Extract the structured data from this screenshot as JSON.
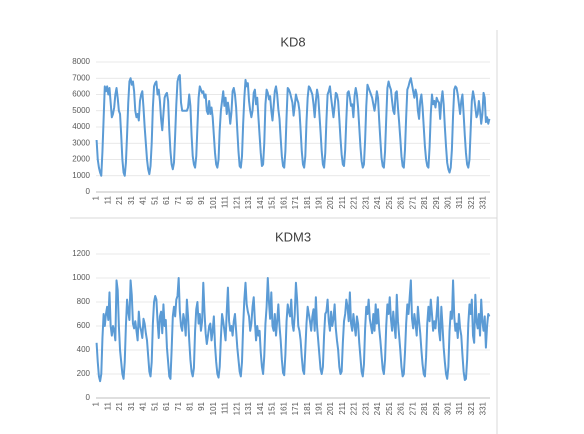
{
  "chart_data": [
    {
      "type": "line",
      "title": "KD8",
      "color": "#5b9bd5",
      "grid": true,
      "ylim": [
        0,
        8000
      ],
      "yticks": [
        0,
        1000,
        2000,
        3000,
        4000,
        5000,
        6000,
        7000,
        8000
      ],
      "categories": [
        "1",
        null,
        null,
        null,
        null,
        null,
        null,
        null,
        null,
        null,
        "11",
        null,
        null,
        null,
        null,
        null,
        null,
        null,
        null,
        null,
        "21",
        null,
        null,
        null,
        null,
        null,
        null,
        null,
        null,
        null,
        "31",
        null,
        null,
        null,
        null,
        null,
        null,
        null,
        null,
        null,
        "41",
        null,
        null,
        null,
        null,
        null,
        null,
        null,
        null,
        null,
        "51",
        null,
        null,
        null,
        null,
        null,
        null,
        null,
        null,
        null,
        "61",
        null,
        null,
        null,
        null,
        null,
        null,
        null,
        null,
        null,
        "71",
        null,
        null,
        null,
        null,
        null,
        null,
        null,
        null,
        null,
        "81",
        null,
        null,
        null,
        null,
        null,
        null,
        null,
        null,
        null,
        "91",
        null,
        null,
        null,
        null,
        null,
        null,
        null,
        null,
        null,
        "101",
        null,
        null,
        null,
        null,
        null,
        null,
        null,
        null,
        null,
        "111",
        null,
        null,
        null,
        null,
        null,
        null,
        null,
        null,
        null,
        "121",
        null,
        null,
        null,
        null,
        null,
        null,
        null,
        null,
        null,
        "131",
        null,
        null,
        null,
        null,
        null,
        null,
        null,
        null,
        null,
        "141",
        null,
        null,
        null,
        null,
        null,
        null,
        null,
        null,
        null,
        "151",
        null,
        null,
        null,
        null,
        null,
        null,
        null,
        null,
        null,
        "161",
        null,
        null,
        null,
        null,
        null,
        null,
        null,
        null,
        null,
        "171",
        null,
        null,
        null,
        null,
        null,
        null,
        null,
        null,
        null,
        "181",
        null,
        null,
        null,
        null,
        null,
        null,
        null,
        null,
        null,
        "191",
        null,
        null,
        null,
        null,
        null,
        null,
        null,
        null,
        null,
        "201",
        null,
        null,
        null,
        null,
        null,
        null,
        null,
        null,
        null,
        "211",
        null,
        null,
        null,
        null,
        null,
        null,
        null,
        null,
        null,
        "221",
        null,
        null,
        null,
        null,
        null,
        null,
        null,
        null,
        null,
        "231",
        null,
        null,
        null,
        null,
        null,
        null,
        null,
        null,
        null,
        "241",
        null,
        null,
        null,
        null,
        null,
        null,
        null,
        null,
        null,
        "251",
        null,
        null,
        null,
        null,
        null,
        null,
        null,
        null,
        null,
        "261",
        null,
        null,
        null,
        null,
        null,
        null,
        null,
        null,
        null,
        "271",
        null,
        null,
        null,
        null,
        null,
        null,
        null,
        null,
        null,
        "281",
        null,
        null,
        null,
        null,
        null,
        null,
        null,
        null,
        null,
        "291",
        null,
        null,
        null,
        null,
        null,
        null,
        null,
        null,
        null,
        "301",
        null,
        null,
        null,
        null,
        null,
        null,
        null,
        null,
        null,
        "311",
        null,
        null,
        null,
        null,
        null,
        null,
        null,
        null,
        null,
        "321",
        null,
        null,
        null,
        null,
        null,
        null,
        null,
        null,
        null,
        "331",
        null,
        null,
        null,
        null,
        null
      ],
      "values": [
        3200,
        2000,
        1500,
        1200,
        1000,
        2500,
        4500,
        6500,
        6200,
        6500,
        6000,
        6400,
        5500,
        4600,
        4800,
        5200,
        6000,
        6400,
        5800,
        5000,
        4800,
        3500,
        2000,
        1200,
        1000,
        1800,
        3500,
        5500,
        6800,
        7000,
        6600,
        6800,
        6200,
        5000,
        4600,
        4800,
        4400,
        5600,
        6000,
        6200,
        5200,
        4000,
        3000,
        2000,
        1400,
        1100,
        1600,
        3000,
        5200,
        6500,
        6700,
        6800,
        6000,
        6300,
        5600,
        4500,
        3800,
        4800,
        5800,
        6000,
        6100,
        5600,
        3800,
        2500,
        1700,
        1400,
        1800,
        3500,
        5400,
        6800,
        7100,
        7200,
        5500,
        5000,
        5000,
        5000,
        5000,
        5000,
        5200,
        6000,
        5300,
        3500,
        2200,
        1700,
        1500,
        2200,
        4000,
        5800,
        6500,
        6300,
        6100,
        6200,
        5800,
        6000,
        5000,
        4800,
        5600,
        4800,
        5200,
        4600,
        3500,
        2400,
        1700,
        1500,
        2000,
        3800,
        5000,
        5600,
        6200,
        5300,
        5800,
        4800,
        5500,
        5000,
        4200,
        4900,
        6200,
        6400,
        6000,
        5200,
        3800,
        2500,
        1600,
        1500,
        2200,
        4200,
        5800,
        6900,
        6500,
        6700,
        5600,
        5000,
        4600,
        5000,
        6100,
        6300,
        5400,
        5800,
        4600,
        3500,
        2400,
        1600,
        1700,
        3000,
        5400,
        6300,
        6100,
        5700,
        5900,
        5000,
        4400,
        5300,
        6200,
        6500,
        6000,
        5100,
        4500,
        3300,
        2200,
        1600,
        1500,
        2500,
        4600,
        6400,
        6300,
        6100,
        5800,
        5500,
        4700,
        5300,
        6000,
        5700,
        5500,
        5000,
        3800,
        2500,
        1700,
        1500,
        2200,
        4300,
        5800,
        6500,
        6400,
        6200,
        6000,
        5400,
        4600,
        5600,
        6300,
        5900,
        4800,
        3700,
        2500,
        1700,
        1500,
        2400,
        4400,
        6000,
        6200,
        6500,
        5800,
        5200,
        4600,
        5300,
        6100,
        6000,
        5600,
        4500,
        3300,
        2300,
        1700,
        1600,
        2600,
        4500,
        6100,
        6200,
        5800,
        5300,
        5400,
        4600,
        5900,
        6400,
        6000,
        5200,
        4000,
        2800,
        1900,
        1500,
        1700,
        3200,
        5300,
        6600,
        6400,
        6200,
        6000,
        5800,
        5400,
        5000,
        5500,
        6200,
        5800,
        4400,
        3200,
        2100,
        1600,
        1500,
        2500,
        4500,
        6400,
        6800,
        6500,
        6300,
        5600,
        5000,
        4800,
        6100,
        6200,
        5200,
        4300,
        3300,
        2200,
        1600,
        1500,
        2600,
        4600,
        6300,
        6500,
        6800,
        7000,
        6600,
        6200,
        5800,
        6300,
        6000,
        5000,
        4500,
        5600,
        6000,
        5200,
        4000,
        2800,
        2000,
        1600,
        1500,
        2800,
        4800,
        6000,
        5400,
        5600,
        5200,
        5800,
        5600,
        5500,
        4500,
        5600,
        6200,
        5400,
        4000,
        2800,
        1800,
        1400,
        1200,
        1500,
        2600,
        4700,
        6300,
        6500,
        6400,
        6000,
        5400,
        4800,
        5600,
        6000,
        4800,
        3500,
        2400,
        1700,
        1500,
        2000,
        3800,
        5600,
        6200,
        5800,
        5200,
        4600,
        4800,
        5600,
        5000,
        4200,
        4800,
        6100,
        5800,
        4300,
        4600,
        4200,
        4500
      ]
    },
    {
      "type": "line",
      "title": "KDM3",
      "color": "#5b9bd5",
      "grid": true,
      "ylim": [
        0,
        1200
      ],
      "yticks": [
        0,
        200,
        400,
        600,
        800,
        1000,
        1200
      ],
      "categories": [
        "1",
        null,
        null,
        null,
        null,
        null,
        null,
        null,
        null,
        null,
        "11",
        null,
        null,
        null,
        null,
        null,
        null,
        null,
        null,
        null,
        "21",
        null,
        null,
        null,
        null,
        null,
        null,
        null,
        null,
        null,
        "31",
        null,
        null,
        null,
        null,
        null,
        null,
        null,
        null,
        null,
        "41",
        null,
        null,
        null,
        null,
        null,
        null,
        null,
        null,
        null,
        "51",
        null,
        null,
        null,
        null,
        null,
        null,
        null,
        null,
        null,
        "61",
        null,
        null,
        null,
        null,
        null,
        null,
        null,
        null,
        null,
        "71",
        null,
        null,
        null,
        null,
        null,
        null,
        null,
        null,
        null,
        "81",
        null,
        null,
        null,
        null,
        null,
        null,
        null,
        null,
        null,
        "91",
        null,
        null,
        null,
        null,
        null,
        null,
        null,
        null,
        null,
        "101",
        null,
        null,
        null,
        null,
        null,
        null,
        null,
        null,
        null,
        "111",
        null,
        null,
        null,
        null,
        null,
        null,
        null,
        null,
        null,
        "121",
        null,
        null,
        null,
        null,
        null,
        null,
        null,
        null,
        null,
        "131",
        null,
        null,
        null,
        null,
        null,
        null,
        null,
        null,
        null,
        "141",
        null,
        null,
        null,
        null,
        null,
        null,
        null,
        null,
        null,
        "151",
        null,
        null,
        null,
        null,
        null,
        null,
        null,
        null,
        null,
        "161",
        null,
        null,
        null,
        null,
        null,
        null,
        null,
        null,
        null,
        "171",
        null,
        null,
        null,
        null,
        null,
        null,
        null,
        null,
        null,
        "181",
        null,
        null,
        null,
        null,
        null,
        null,
        null,
        null,
        null,
        "191",
        null,
        null,
        null,
        null,
        null,
        null,
        null,
        null,
        null,
        "201",
        null,
        null,
        null,
        null,
        null,
        null,
        null,
        null,
        null,
        "211",
        null,
        null,
        null,
        null,
        null,
        null,
        null,
        null,
        null,
        "221",
        null,
        null,
        null,
        null,
        null,
        null,
        null,
        null,
        null,
        "231",
        null,
        null,
        null,
        null,
        null,
        null,
        null,
        null,
        null,
        "241",
        null,
        null,
        null,
        null,
        null,
        null,
        null,
        null,
        null,
        "251",
        null,
        null,
        null,
        null,
        null,
        null,
        null,
        null,
        null,
        "261",
        null,
        null,
        null,
        null,
        null,
        null,
        null,
        null,
        null,
        "271",
        null,
        null,
        null,
        null,
        null,
        null,
        null,
        null,
        null,
        "281",
        null,
        null,
        null,
        null,
        null,
        null,
        null,
        null,
        null,
        "291",
        null,
        null,
        null,
        null,
        null,
        null,
        null,
        null,
        null,
        "301",
        null,
        null,
        null,
        null,
        null,
        null,
        null,
        null,
        null,
        "311",
        null,
        null,
        null,
        null,
        null,
        null,
        null,
        null,
        null,
        "321",
        null,
        null,
        null,
        null,
        null,
        null,
        null,
        null,
        null,
        "331",
        null,
        null,
        null,
        null,
        null
      ],
      "values": [
        460,
        300,
        180,
        140,
        200,
        500,
        700,
        600,
        700,
        760,
        650,
        880,
        600,
        520,
        600,
        560,
        480,
        980,
        900,
        600,
        400,
        300,
        200,
        160,
        300,
        600,
        820,
        720,
        650,
        980,
        860,
        620,
        580,
        640,
        560,
        480,
        720,
        600,
        560,
        500,
        660,
        620,
        540,
        480,
        350,
        220,
        180,
        300,
        620,
        800,
        850,
        820,
        640,
        500,
        680,
        720,
        540,
        780,
        600,
        650,
        420,
        300,
        180,
        160,
        400,
        680,
        760,
        680,
        820,
        850,
        1000,
        720,
        600,
        560,
        700,
        640,
        520,
        820,
        680,
        480,
        320,
        220,
        180,
        250,
        560,
        740,
        800,
        620,
        700,
        560,
        640,
        960,
        720,
        540,
        450,
        520,
        600,
        620,
        480,
        560,
        680,
        440,
        300,
        200,
        170,
        260,
        500,
        700,
        640,
        560,
        480,
        720,
        920,
        640,
        560,
        600,
        520,
        640,
        700,
        560,
        420,
        320,
        220,
        180,
        300,
        600,
        820,
        960,
        780,
        720,
        680,
        560,
        620,
        760,
        840,
        640,
        480,
        600,
        520,
        560,
        380,
        260,
        200,
        350,
        620,
        760,
        1000,
        800,
        660,
        880,
        600,
        560,
        700,
        520,
        640,
        780,
        600,
        480,
        320,
        210,
        190,
        360,
        640,
        780,
        720,
        680,
        820,
        620,
        560,
        700,
        960,
        820,
        600,
        560,
        480,
        340,
        230,
        200,
        400,
        620,
        760,
        700,
        640,
        560,
        680,
        740,
        560,
        840,
        600,
        480,
        360,
        240,
        200,
        260,
        520,
        700,
        720,
        820,
        640,
        560,
        720,
        600,
        660,
        780,
        580,
        480,
        400,
        260,
        200,
        220,
        460,
        640,
        700,
        820,
        760,
        640,
        880,
        620,
        560,
        700,
        600,
        520,
        680,
        620,
        460,
        340,
        220,
        180,
        280,
        580,
        760,
        700,
        820,
        660,
        600,
        540,
        700,
        560,
        780,
        620,
        740,
        580,
        480,
        360,
        240,
        200,
        320,
        600,
        780,
        700,
        840,
        660,
        560,
        720,
        600,
        500,
        860,
        640,
        520,
        400,
        260,
        180,
        200,
        380,
        620,
        780,
        700,
        840,
        980,
        660,
        580,
        700,
        620,
        520,
        760,
        640,
        540,
        400,
        280,
        200,
        180,
        340,
        620,
        760,
        640,
        820,
        700,
        560,
        640,
        580,
        700,
        840,
        560,
        480,
        760,
        600,
        420,
        300,
        200,
        160,
        260,
        560,
        720,
        660,
        980,
        680,
        560,
        620,
        500,
        700,
        580,
        520,
        360,
        220,
        150,
        160,
        320,
        620,
        780,
        700,
        820,
        520,
        460,
        860,
        640,
        580,
        700,
        520,
        820,
        640,
        560,
        680,
        420,
        600,
        700,
        680
      ]
    }
  ]
}
